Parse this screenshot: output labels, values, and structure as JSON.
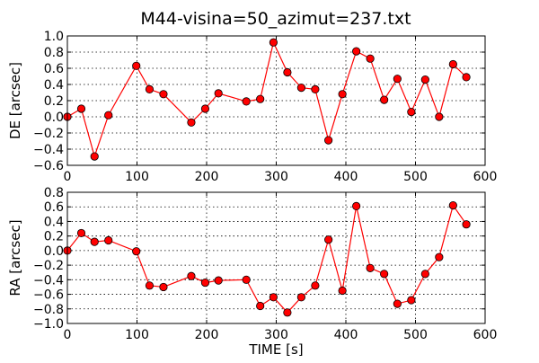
{
  "figure": {
    "title": "M44-visina=50_azimut=237.txt"
  },
  "chart_data": [
    {
      "type": "line",
      "xlabel": "",
      "ylabel": "DE [arcsec]",
      "xlim": [
        0,
        600
      ],
      "ylim": [
        -0.6,
        1.0
      ],
      "xticks": [
        0,
        100,
        200,
        300,
        400,
        500,
        600
      ],
      "yticks": [
        -0.6,
        -0.4,
        -0.2,
        0.0,
        0.2,
        0.4,
        0.6,
        0.8,
        1.0
      ],
      "xtick_labels": [
        "0",
        "100",
        "200",
        "300",
        "400",
        "500",
        "600"
      ],
      "ytick_labels": [
        "−0.6",
        "−0.4",
        "−0.2",
        "0.0",
        "0.2",
        "0.4",
        "0.6",
        "0.8",
        "1.0"
      ],
      "grid": true,
      "line_color": "#ff0000",
      "marker_color": "#ff0000",
      "series": [
        {
          "x": [
            0,
            20,
            39,
            59,
            99,
            118,
            138,
            178,
            198,
            217,
            257,
            277,
            296,
            316,
            336,
            356,
            375,
            395,
            415,
            435,
            455,
            474,
            494,
            514,
            534,
            554,
            573
          ],
          "y": [
            0.0,
            0.1,
            -0.49,
            0.02,
            0.63,
            0.34,
            0.28,
            -0.07,
            0.1,
            0.29,
            0.19,
            0.22,
            0.92,
            0.55,
            0.36,
            0.34,
            -0.29,
            0.28,
            0.81,
            0.72,
            0.21,
            0.47,
            0.06,
            0.46,
            0.0,
            0.65,
            0.49
          ]
        }
      ]
    },
    {
      "type": "line",
      "xlabel": "TIME [s]",
      "ylabel": "RA [arcsec]",
      "xlim": [
        0,
        600
      ],
      "ylim": [
        -1.0,
        0.8
      ],
      "xticks": [
        0,
        100,
        200,
        300,
        400,
        500,
        600
      ],
      "yticks": [
        -1.0,
        -0.8,
        -0.6,
        -0.4,
        -0.2,
        0.0,
        0.2,
        0.4,
        0.6,
        0.8
      ],
      "xtick_labels": [
        "0",
        "100",
        "200",
        "300",
        "400",
        "500",
        "600"
      ],
      "ytick_labels": [
        "−1.0",
        "−0.8",
        "−0.6",
        "−0.4",
        "−0.2",
        "0.0",
        "0.2",
        "0.4",
        "0.6",
        "0.8"
      ],
      "grid": true,
      "line_color": "#ff0000",
      "marker_color": "#ff0000",
      "series": [
        {
          "x": [
            0,
            20,
            39,
            59,
            99,
            118,
            138,
            178,
            198,
            217,
            257,
            277,
            296,
            316,
            336,
            356,
            375,
            395,
            415,
            435,
            455,
            474,
            494,
            514,
            534,
            554,
            573
          ],
          "y": [
            0.0,
            0.24,
            0.12,
            0.14,
            -0.01,
            -0.48,
            -0.5,
            -0.35,
            -0.44,
            -0.41,
            -0.4,
            -0.76,
            -0.64,
            -0.85,
            -0.64,
            -0.48,
            0.15,
            -0.55,
            0.61,
            -0.24,
            -0.32,
            -0.73,
            -0.68,
            -0.32,
            -0.09,
            0.62,
            0.36
          ]
        }
      ]
    }
  ]
}
